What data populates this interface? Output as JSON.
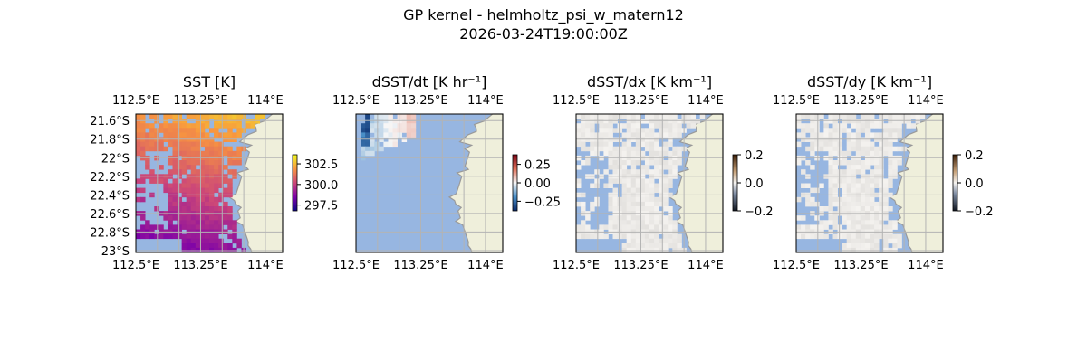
{
  "figure": {
    "title_line1": "GP kernel - helmholtz_psi_w_matern12",
    "title_line2": "2026-03-24T19:00:00Z"
  },
  "colors": {
    "ocean": "#97b6e1",
    "land": "#efefdb",
    "coast": "#9a9a9a",
    "grid": "#b3b3b3"
  },
  "chart_data": [
    {
      "type": "heatmap",
      "title": "SST [K]",
      "colormap": "plasma-like (purple to orange)",
      "x_ticks": [
        "112.5°E",
        "113.25°E",
        "114°E"
      ],
      "x_tick_values": [
        112.5,
        113.25,
        114.0
      ],
      "y_ticks": [
        "21.6°S",
        "21.8°S",
        "22°S",
        "22.2°S",
        "22.4°S",
        "22.6°S",
        "22.8°S",
        "23°S"
      ],
      "y_tick_values": [
        -21.6,
        -21.8,
        -22.0,
        -22.2,
        -22.4,
        -22.6,
        -22.8,
        -23.0
      ],
      "xlim": [
        112.5,
        114.2
      ],
      "ylim": [
        -23.02,
        -21.53
      ],
      "colorbar_ticks": [
        "302.5",
        "300.0",
        "297.5"
      ],
      "colorbar_tick_values": [
        302.5,
        300.0,
        297.5
      ],
      "colorbar_range": [
        296.8,
        303.6
      ],
      "grid": true
    },
    {
      "type": "heatmap",
      "title": "dSST/dt [K hr⁻¹]",
      "colormap": "diverging (blue-white-red)",
      "x_ticks": [
        "112.5°E",
        "113.25°E",
        "114°E"
      ],
      "x_tick_values": [
        112.5,
        113.25,
        114.0
      ],
      "xlim": [
        112.5,
        114.2
      ],
      "ylim": [
        -23.02,
        -21.53
      ],
      "colorbar_ticks": [
        "0.25",
        "0.00",
        "−0.25"
      ],
      "colorbar_tick_values": [
        0.25,
        0.0,
        -0.25
      ],
      "colorbar_range": [
        -0.38,
        0.38
      ],
      "grid": true
    },
    {
      "type": "heatmap",
      "title": "dSST/dx [K km⁻¹]",
      "colormap": "diverging (dark-white-brown)",
      "x_ticks": [
        "112.5°E",
        "113.25°E",
        "114°E"
      ],
      "x_tick_values": [
        112.5,
        113.25,
        114.0
      ],
      "xlim": [
        112.5,
        114.2
      ],
      "ylim": [
        -23.02,
        -21.53
      ],
      "colorbar_ticks": [
        "0.2",
        "0.0",
        "−0.2"
      ],
      "colorbar_tick_values": [
        0.2,
        0.0,
        -0.2
      ],
      "colorbar_range": [
        -0.2,
        0.2
      ],
      "grid": true
    },
    {
      "type": "heatmap",
      "title": "dSST/dy [K km⁻¹]",
      "colormap": "diverging (dark-white-brown)",
      "x_ticks": [
        "112.5°E",
        "113.25°E",
        "114°E"
      ],
      "x_tick_values": [
        112.5,
        113.25,
        114.0
      ],
      "xlim": [
        112.5,
        114.2
      ],
      "ylim": [
        -23.02,
        -21.53
      ],
      "colorbar_ticks": [
        "0.2",
        "0.0",
        "−0.2"
      ],
      "colorbar_tick_values": [
        0.2,
        0.0,
        -0.2
      ],
      "colorbar_range": [
        -0.2,
        0.2
      ],
      "grid": true
    }
  ]
}
